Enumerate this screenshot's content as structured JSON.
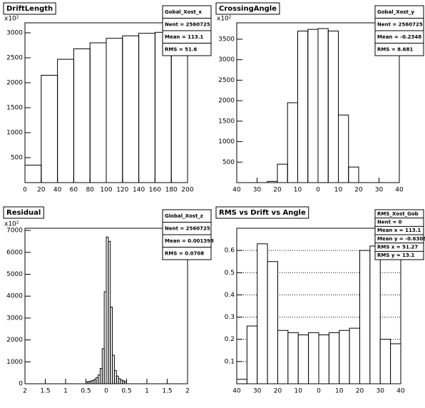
{
  "chart_data": [
    {
      "type": "histogram",
      "title": "DriftLength",
      "exponent": "x10²",
      "stats": [
        "Gobal_Xost_x",
        "Nent = 2560725",
        "Mean = 113.1",
        "RMS = 51.6"
      ],
      "bins": [
        0,
        20,
        40,
        60,
        80,
        100,
        120,
        140,
        160,
        180,
        200
      ],
      "values": [
        350,
        2150,
        2470,
        2680,
        2800,
        2890,
        2940,
        2990,
        3010,
        3030
      ],
      "xlim": [
        0,
        200
      ],
      "xticks": [
        0,
        20,
        40,
        60,
        80,
        100,
        120,
        140,
        160,
        180,
        200
      ],
      "ylim": [
        0,
        3200
      ],
      "yticks": [
        500,
        1000,
        1500,
        2000,
        2500,
        3000
      ],
      "grid": false,
      "fill": "none"
    },
    {
      "type": "histogram",
      "title": "CrossingAngle",
      "exponent": "x10²",
      "stats": [
        "Gobal_Xost_y",
        "Nent = 2560725",
        "Mean = -0.2348",
        "RMS = 8.681"
      ],
      "bins": [
        -25,
        -20,
        -15,
        -10,
        -5,
        0,
        5,
        10,
        15,
        20,
        25
      ],
      "values": [
        30,
        450,
        1950,
        3700,
        3740,
        3760,
        3700,
        1650,
        380,
        0
      ],
      "xlim": [
        -40,
        40
      ],
      "xticks": [
        {
          "value": -40,
          "label": "40"
        },
        {
          "value": -30,
          "label": "30"
        },
        {
          "value": -20,
          "label": "20"
        },
        {
          "value": -10,
          "label": "10"
        },
        0,
        10,
        20,
        30,
        40
      ],
      "ylim": [
        0,
        3900
      ],
      "yticks": [
        500,
        1000,
        1500,
        2000,
        2500,
        3000,
        3500
      ],
      "grid": false,
      "fill": "none"
    },
    {
      "type": "histogram",
      "title": "Residual",
      "exponent": "x10²",
      "stats": [
        "Global_Xost_z",
        "Nent = 2560725",
        "Mean = 0.001398",
        "RMS = 0.0708"
      ],
      "bins": [
        -0.5,
        -0.45,
        -0.4,
        -0.35,
        -0.3,
        -0.25,
        -0.2,
        -0.15,
        -0.1,
        -0.05,
        0,
        0.05,
        0.1,
        0.15,
        0.2,
        0.25,
        0.3,
        0.35,
        0.4,
        0.45,
        0.5
      ],
      "values": [
        80,
        100,
        120,
        150,
        200,
        280,
        400,
        700,
        1600,
        4200,
        6700,
        6500,
        3500,
        1300,
        600,
        350,
        230,
        170,
        130,
        100
      ],
      "xlim": [
        -2,
        2
      ],
      "xticks": [
        {
          "value": -2,
          "label": "2"
        },
        {
          "value": -1.5,
          "label": "1.5"
        },
        {
          "value": -1,
          "label": "1"
        },
        {
          "value": -0.5,
          "label": "0.5"
        },
        0,
        0.5,
        1,
        1.5,
        2
      ],
      "ylim": [
        0,
        7100
      ],
      "yticks": [
        0,
        1000,
        2000,
        3000,
        4000,
        5000,
        6000,
        7000
      ],
      "grid": false,
      "fill": "none"
    },
    {
      "type": "histogram",
      "title": "RMS vs Drift vs Angle",
      "stats": [
        "RMS_Xost_Gob",
        "Nent = 0",
        "Mean x = 113.1",
        "Mean y = -0.6308",
        "RMS x = 51.27",
        "RMS y = 13.1"
      ],
      "bins": [
        -40,
        -35,
        -30,
        -25,
        -20,
        -15,
        -10,
        -5,
        0,
        5,
        10,
        15,
        20,
        25,
        30,
        35,
        40
      ],
      "values": [
        0.02,
        0.26,
        0.63,
        0.55,
        0.24,
        0.23,
        0.22,
        0.23,
        0.22,
        0.23,
        0.24,
        0.25,
        0.6,
        0.62,
        0.2,
        0.18
      ],
      "xlim": [
        -40,
        40
      ],
      "xticks": [
        {
          "value": -40,
          "label": "40"
        },
        {
          "value": -30,
          "label": "30"
        },
        {
          "value": -20,
          "label": "20"
        },
        {
          "value": -10,
          "label": "10"
        },
        0,
        10,
        20,
        30,
        40
      ],
      "ylim": [
        0,
        0.7
      ],
      "yticks": [
        0.1,
        0.2,
        0.3,
        0.4,
        0.5,
        0.6
      ],
      "grid": true,
      "fill": "#ffffff"
    }
  ]
}
